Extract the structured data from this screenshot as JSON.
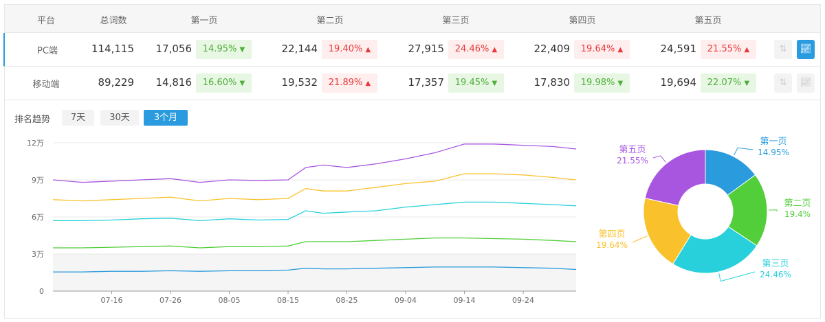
{
  "table": {
    "headers": [
      "平台",
      "总词数",
      "第一页",
      "第二页",
      "第三页",
      "第四页",
      "第五页"
    ],
    "rows": [
      {
        "platform": "PC端",
        "total": "114,115",
        "pages": [
          {
            "count": "17,056",
            "pct": "14.95%",
            "trend": "down"
          },
          {
            "count": "22,144",
            "pct": "19.40%",
            "trend": "up"
          },
          {
            "count": "27,915",
            "pct": "24.46%",
            "trend": "up"
          },
          {
            "count": "22,409",
            "pct": "19.64%",
            "trend": "up"
          },
          {
            "count": "24,591",
            "pct": "21.55%",
            "trend": "up"
          }
        ],
        "chart_active": true
      },
      {
        "platform": "移动端",
        "total": "89,229",
        "pages": [
          {
            "count": "14,816",
            "pct": "16.60%",
            "trend": "down"
          },
          {
            "count": "19,532",
            "pct": "21.89%",
            "trend": "up"
          },
          {
            "count": "17,357",
            "pct": "19.45%",
            "trend": "down"
          },
          {
            "count": "17,830",
            "pct": "19.98%",
            "trend": "down"
          },
          {
            "count": "19,694",
            "pct": "22.07%",
            "trend": "down"
          }
        ],
        "chart_active": false
      }
    ],
    "icons": {
      "sort": "sort-arrows-icon",
      "chart": "trend-chart-icon"
    }
  },
  "trend": {
    "label": "排名趋势",
    "ranges": [
      "7天",
      "30天",
      "3个月"
    ],
    "selected": "3个月"
  },
  "colors": {
    "accent": "#2b9be0",
    "up": "#e8393a",
    "down": "#4cae3a"
  },
  "chart_data": [
    {
      "type": "line",
      "x": [
        "07-06",
        "07-11",
        "07-16",
        "07-21",
        "07-26",
        "07-31",
        "08-05",
        "08-10",
        "08-15",
        "08-18",
        "08-21",
        "08-25",
        "08-30",
        "09-04",
        "09-09",
        "09-14",
        "09-19",
        "09-24",
        "09-29",
        "10-03"
      ],
      "xticks": [
        "07-16",
        "07-26",
        "08-05",
        "08-15",
        "08-25",
        "09-04",
        "09-14",
        "09-24"
      ],
      "yticks": [
        "0",
        "3万",
        "6万",
        "9万",
        "12万"
      ],
      "ylim": [
        0,
        12
      ],
      "yunit": "万",
      "grid": true,
      "series": [
        {
          "color": "#a855e0",
          "values": [
            9.0,
            8.8,
            8.9,
            9.0,
            9.1,
            8.8,
            9.0,
            8.95,
            9.0,
            10.0,
            10.2,
            10.0,
            10.3,
            10.7,
            11.2,
            11.9,
            11.9,
            11.8,
            11.7,
            11.5
          ]
        },
        {
          "color": "#f9c22c",
          "values": [
            7.4,
            7.3,
            7.4,
            7.5,
            7.6,
            7.3,
            7.5,
            7.4,
            7.5,
            8.3,
            8.1,
            8.1,
            8.4,
            8.7,
            8.9,
            9.5,
            9.5,
            9.4,
            9.2,
            9.0
          ]
        },
        {
          "color": "#27d0db",
          "values": [
            5.7,
            5.7,
            5.75,
            5.85,
            5.9,
            5.7,
            5.85,
            5.75,
            5.8,
            6.5,
            6.3,
            6.4,
            6.5,
            6.8,
            7.0,
            7.2,
            7.2,
            7.1,
            7.0,
            6.9
          ]
        },
        {
          "color": "#52ce3a",
          "values": [
            3.5,
            3.5,
            3.55,
            3.6,
            3.65,
            3.5,
            3.6,
            3.6,
            3.65,
            4.0,
            4.0,
            4.0,
            4.1,
            4.2,
            4.3,
            4.3,
            4.25,
            4.2,
            4.1,
            4.0
          ]
        },
        {
          "color": "#2a9bdc",
          "values": [
            1.55,
            1.55,
            1.6,
            1.6,
            1.65,
            1.6,
            1.65,
            1.65,
            1.7,
            1.85,
            1.8,
            1.8,
            1.85,
            1.9,
            1.95,
            1.95,
            1.95,
            1.9,
            1.85,
            1.75
          ]
        }
      ]
    },
    {
      "type": "pie",
      "donut": true,
      "slices": [
        {
          "label": "第一页",
          "pct": "14.95%",
          "value": 14.95,
          "color": "#2a9bdc"
        },
        {
          "label": "第二页",
          "pct": "19.4%",
          "value": 19.4,
          "color": "#52ce3a"
        },
        {
          "label": "第三页",
          "pct": "24.46%",
          "value": 24.46,
          "color": "#27d0db"
        },
        {
          "label": "第四页",
          "pct": "19.64%",
          "value": 19.64,
          "color": "#f9c22c"
        },
        {
          "label": "第五页",
          "pct": "21.55%",
          "value": 21.55,
          "color": "#a855e0"
        }
      ]
    }
  ]
}
